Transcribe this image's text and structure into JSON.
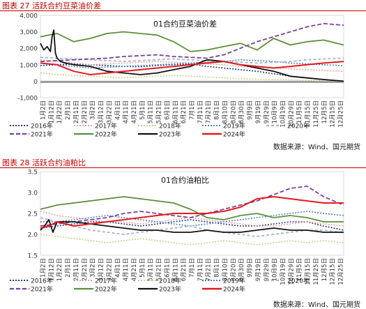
{
  "figures": [
    {
      "title": "图表 27 活跃合约豆菜油价差",
      "source": "数据来源：Wind、国元期货"
    },
    {
      "title": "图表 28 活跃合约油粕比",
      "source": "数据来源：Wind、国元期货"
    }
  ],
  "series_styles": [
    {
      "name": "2016年",
      "color": "#1f3d7a",
      "dash": "2,2",
      "width": 1.6
    },
    {
      "name": "2017年",
      "color": "#e8a3a0",
      "dash": "2,2",
      "width": 1.6
    },
    {
      "name": "2018年",
      "color": "#c9cf8a",
      "dash": "2,2",
      "width": 1.6
    },
    {
      "name": "2019年",
      "color": "#4f81bd",
      "dash": "2,2",
      "width": 1.6
    },
    {
      "name": "2020年",
      "color": "#a8b4c8",
      "dash": "4,3",
      "width": 1.8
    },
    {
      "name": "2021年",
      "color": "#7b3fa0",
      "dash": "6,3",
      "width": 1.8
    },
    {
      "name": "2022年",
      "color": "#5a8f3a",
      "dash": "",
      "width": 1.8
    },
    {
      "name": "2023年",
      "color": "#111111",
      "dash": "",
      "width": 1.8
    },
    {
      "name": "2024年",
      "color": "#e31a1c",
      "dash": "",
      "width": 2.0
    }
  ],
  "chart_data": [
    {
      "type": "line",
      "title": "01合约豆菜油价差",
      "x_labels": [
        "1月2日",
        "1月12日",
        "1月22日",
        "2月1日",
        "2月11日",
        "2月21日",
        "3月2日",
        "3月12日",
        "3月22日",
        "4月1日",
        "4月11日",
        "4月21日",
        "5月1日",
        "5月11日",
        "5月21日",
        "6月1日",
        "6月11日",
        "6月21日",
        "7月1日",
        "7月11日",
        "7月21日",
        "8月1日",
        "8月10日",
        "8月20日",
        "8月30日",
        "9月9日",
        "9月19日",
        "9月29日",
        "10月9日",
        "10月19日",
        "10月29日",
        "11月5日",
        "11月15日",
        "11月25日",
        "12月5日",
        "12月15日",
        "12月25日"
      ],
      "y_ticks": [
        -1000,
        0,
        1000,
        2000,
        3000,
        4000
      ],
      "y_tick_labels": [
        "-1,000",
        "0",
        "1,000",
        "2,000",
        "3,000",
        "4,000"
      ],
      "ylim": [
        -1000,
        4000
      ],
      "legend": [
        "2016年",
        "2017年",
        "2018年",
        "2019年",
        "2020年",
        "2021年",
        "2022年",
        "2023年",
        "2024年"
      ],
      "series": [
        {
          "name": "2016年",
          "x": [
            0,
            20,
            40,
            60,
            80,
            100,
            120,
            140,
            160,
            180,
            200,
            220,
            240,
            260,
            280,
            300,
            320,
            340,
            364
          ],
          "y": [
            950,
            1000,
            1050,
            1000,
            950,
            900,
            880,
            950,
            1000,
            1050,
            900,
            800,
            700,
            600,
            450,
            300,
            200,
            100,
            0
          ]
        },
        {
          "name": "2017年",
          "x": [
            0,
            20,
            40,
            60,
            80,
            100,
            120,
            140,
            160,
            180,
            200,
            220,
            240,
            260,
            280,
            300,
            320,
            340,
            364
          ],
          "y": [
            1300,
            1200,
            1100,
            1000,
            1050,
            1100,
            1150,
            1200,
            1150,
            1100,
            1050,
            1000,
            900,
            850,
            800,
            750,
            700,
            650,
            600
          ]
        },
        {
          "name": "2018年",
          "x": [
            0,
            20,
            40,
            60,
            80,
            100,
            120,
            140,
            160,
            180,
            200,
            220,
            240,
            260,
            280,
            300,
            320,
            340,
            364
          ],
          "y": [
            500,
            400,
            350,
            300,
            250,
            200,
            250,
            300,
            350,
            300,
            250,
            200,
            150,
            120,
            100,
            80,
            60,
            40,
            20
          ]
        },
        {
          "name": "2019年",
          "x": [
            0,
            20,
            40,
            60,
            80,
            100,
            120,
            140,
            160,
            180,
            200,
            220,
            240,
            260,
            280,
            300,
            320,
            340,
            364
          ],
          "y": [
            1100,
            1000,
            900,
            800,
            850,
            900,
            950,
            1000,
            1050,
            1100,
            1150,
            1200,
            1300,
            1250,
            1200,
            1100,
            1050,
            1000,
            950
          ]
        },
        {
          "name": "2020年",
          "x": [
            0,
            20,
            40,
            60,
            80,
            100,
            120,
            140,
            160,
            180,
            200,
            220,
            240,
            260,
            280,
            300,
            320,
            340,
            364
          ],
          "y": [
            1450,
            1400,
            1350,
            1300,
            1250,
            1200,
            1250,
            1300,
            1350,
            1300,
            1250,
            1200,
            1150,
            1100,
            1150,
            1200,
            1300,
            1350,
            1400
          ]
        },
        {
          "name": "2021年",
          "x": [
            0,
            20,
            40,
            60,
            80,
            100,
            120,
            140,
            160,
            180,
            200,
            220,
            240,
            260,
            280,
            300,
            320,
            340,
            364
          ],
          "y": [
            1200,
            1250,
            1300,
            1350,
            1400,
            1500,
            1550,
            1600,
            1500,
            1450,
            1400,
            1600,
            2000,
            2400,
            2700,
            3000,
            3300,
            3500,
            3400
          ]
        },
        {
          "name": "2022年",
          "x": [
            0,
            10,
            20,
            40,
            60,
            80,
            100,
            120,
            140,
            160,
            180,
            200,
            220,
            240,
            260,
            280,
            300,
            320,
            340,
            364
          ],
          "y": [
            2700,
            2800,
            2900,
            2400,
            2600,
            2900,
            3000,
            2900,
            2800,
            2400,
            1800,
            1900,
            2100,
            2300,
            1900,
            2600,
            2200,
            2400,
            2500,
            2200
          ]
        },
        {
          "name": "2023年",
          "x": [
            0,
            4,
            8,
            12,
            14,
            16,
            18,
            20,
            22,
            24,
            30,
            40,
            60,
            80,
            100,
            120,
            140,
            160,
            180,
            200,
            220,
            240,
            260,
            280,
            300,
            320,
            340,
            364
          ],
          "y": [
            2300,
            1900,
            2100,
            1800,
            2700,
            3100,
            1700,
            1400,
            1300,
            1200,
            1100,
            1000,
            900,
            600,
            500,
            400,
            500,
            700,
            900,
            1300,
            1200,
            1000,
            800,
            600,
            300,
            200,
            100,
            0
          ]
        },
        {
          "name": "2024年",
          "x": [
            0,
            10,
            20,
            40,
            60,
            80,
            100,
            120,
            140,
            160,
            180,
            200,
            220,
            240,
            260,
            280,
            300,
            320,
            340,
            364
          ],
          "y": [
            1100,
            1050,
            1000,
            600,
            400,
            500,
            600,
            700,
            800,
            900,
            1000,
            1100,
            1200,
            1000,
            900,
            800,
            900,
            1000,
            1100,
            1200
          ]
        }
      ]
    },
    {
      "type": "line",
      "title": "01合约油粕比",
      "x_labels": [
        "1月2日",
        "1月12日",
        "1月22日",
        "2月1日",
        "2月11日",
        "2月21日",
        "3月2日",
        "3月12日",
        "3月22日",
        "4月1日",
        "4月11日",
        "4月21日",
        "5月1日",
        "5月11日",
        "5月21日",
        "6月1日",
        "6月11日",
        "6月21日",
        "7月1日",
        "7月11日",
        "7月21日",
        "8月1日",
        "8月10日",
        "8月20日",
        "8月30日",
        "9月9日",
        "9月19日",
        "9月29日",
        "10月9日",
        "10月19日",
        "10月29日",
        "11月5日",
        "11月15日",
        "11月25日",
        "12月5日",
        "12月15日",
        "12月25日"
      ],
      "y_ticks": [
        1.5,
        2.0,
        2.5,
        3.0,
        3.5
      ],
      "y_tick_labels": [
        "1.5",
        "2.0",
        "2.5",
        "3.0",
        "3.5"
      ],
      "ylim": [
        1.5,
        3.5
      ],
      "legend": [
        "2016年",
        "2017年",
        "2018年",
        "2019年",
        "2020年",
        "2021年",
        "2022年",
        "2023年",
        "2024年"
      ],
      "series": [
        {
          "name": "2016年",
          "x": [
            0,
            20,
            40,
            60,
            80,
            100,
            120,
            140,
            160,
            180,
            200,
            220,
            240,
            260,
            280,
            300,
            320,
            340,
            364
          ],
          "y": [
            2.15,
            2.2,
            2.25,
            2.3,
            2.3,
            2.25,
            2.2,
            2.25,
            2.3,
            2.35,
            2.3,
            2.25,
            2.2,
            2.2,
            2.25,
            2.3,
            2.3,
            2.2,
            2.1
          ]
        },
        {
          "name": "2017年",
          "x": [
            0,
            20,
            40,
            60,
            80,
            100,
            120,
            140,
            160,
            180,
            200,
            220,
            240,
            260,
            280,
            300,
            320,
            340,
            364
          ],
          "y": [
            2.55,
            2.45,
            2.4,
            2.35,
            2.3,
            2.3,
            2.25,
            2.3,
            2.35,
            2.4,
            2.35,
            2.3,
            2.25,
            2.2,
            2.2,
            2.25,
            2.3,
            2.25,
            2.2
          ]
        },
        {
          "name": "2018年",
          "x": [
            0,
            20,
            40,
            60,
            80,
            100,
            120,
            140,
            160,
            180,
            200,
            220,
            240,
            260,
            280,
            300,
            320,
            340,
            364
          ],
          "y": [
            2.0,
            1.95,
            1.9,
            1.85,
            1.8,
            1.85,
            1.9,
            1.85,
            1.8,
            1.75,
            1.8,
            1.85,
            1.8,
            1.75,
            1.8,
            1.85,
            1.8,
            1.85,
            1.8
          ]
        },
        {
          "name": "2019年",
          "x": [
            0,
            20,
            40,
            60,
            80,
            100,
            120,
            140,
            160,
            180,
            200,
            220,
            240,
            260,
            280,
            300,
            320,
            340,
            364
          ],
          "y": [
            2.3,
            2.3,
            2.35,
            2.4,
            2.45,
            2.4,
            2.35,
            2.3,
            2.25,
            2.2,
            2.25,
            2.3,
            2.35,
            2.4,
            2.45,
            2.5,
            2.55,
            2.5,
            2.45
          ]
        },
        {
          "name": "2020年",
          "x": [
            0,
            20,
            40,
            60,
            80,
            100,
            120,
            140,
            160,
            180,
            200,
            220,
            240,
            260,
            280,
            300,
            320,
            340,
            364
          ],
          "y": [
            2.4,
            2.3,
            2.2,
            2.1,
            2.05,
            2.0,
            2.05,
            2.1,
            2.15,
            2.2,
            2.1,
            2.05,
            2.0,
            1.95,
            2.0,
            2.05,
            2.1,
            2.1,
            2.05
          ]
        },
        {
          "name": "2021年",
          "x": [
            0,
            20,
            40,
            60,
            80,
            100,
            120,
            140,
            160,
            180,
            200,
            220,
            240,
            260,
            280,
            300,
            320,
            340,
            364
          ],
          "y": [
            2.2,
            2.25,
            2.3,
            2.35,
            2.4,
            2.5,
            2.55,
            2.5,
            2.45,
            2.4,
            2.5,
            2.6,
            2.7,
            2.8,
            2.95,
            3.1,
            3.15,
            2.9,
            2.7
          ]
        },
        {
          "name": "2022年",
          "x": [
            0,
            20,
            40,
            60,
            80,
            100,
            120,
            140,
            160,
            180,
            200,
            220,
            240,
            260,
            280,
            300,
            320,
            340,
            364
          ],
          "y": [
            2.6,
            2.7,
            2.75,
            2.8,
            2.85,
            2.9,
            2.85,
            2.8,
            2.75,
            2.6,
            2.4,
            2.35,
            2.45,
            2.5,
            2.4,
            2.45,
            2.4,
            2.3,
            2.3
          ]
        },
        {
          "name": "2023年",
          "x": [
            0,
            5,
            10,
            15,
            20,
            40,
            60,
            80,
            100,
            120,
            140,
            160,
            180,
            200,
            220,
            240,
            260,
            280,
            300,
            320,
            340,
            364
          ],
          "y": [
            2.1,
            2.2,
            2.35,
            2.05,
            2.3,
            2.3,
            2.25,
            2.2,
            2.15,
            2.1,
            2.1,
            2.05,
            2.05,
            2.1,
            2.05,
            2.05,
            2.1,
            2.15,
            2.1,
            2.1,
            2.05,
            2.05
          ]
        },
        {
          "name": "2024年",
          "x": [
            0,
            10,
            20,
            40,
            60,
            80,
            100,
            120,
            140,
            160,
            180,
            200,
            220,
            240,
            260,
            280,
            300,
            320,
            340,
            364
          ],
          "y": [
            2.15,
            2.2,
            2.3,
            2.2,
            2.25,
            2.3,
            2.35,
            2.4,
            2.45,
            2.5,
            2.5,
            2.5,
            2.55,
            2.65,
            2.85,
            2.9,
            2.85,
            2.8,
            2.75,
            2.75
          ]
        }
      ]
    }
  ]
}
